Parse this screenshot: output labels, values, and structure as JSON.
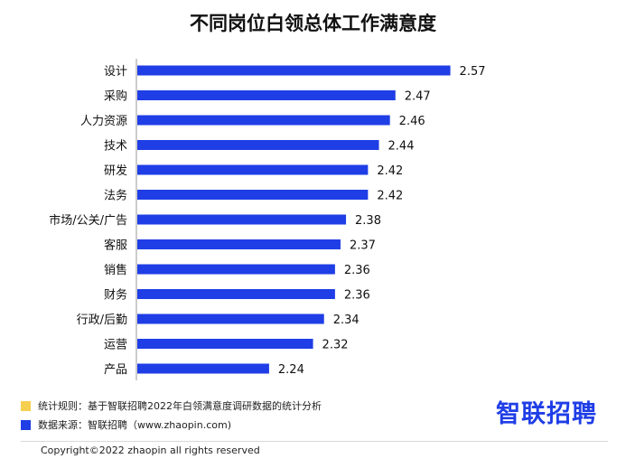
{
  "title": "不同岗位白领总体工作满意度",
  "chart_data": {
    "type": "bar",
    "orientation": "horizontal",
    "title": "不同岗位白领总体工作满意度",
    "categories": [
      "设计",
      "采购",
      "人力资源",
      "技术",
      "研发",
      "法务",
      "市场/公关/广告",
      "客服",
      "销售",
      "财务",
      "行政/后勤",
      "运营",
      "产品"
    ],
    "values": [
      2.57,
      2.47,
      2.46,
      2.44,
      2.42,
      2.42,
      2.38,
      2.37,
      2.36,
      2.36,
      2.34,
      2.32,
      2.24
    ],
    "value_labels": [
      "2.57",
      "2.47",
      "2.46",
      "2.44",
      "2.42",
      "2.42",
      "2.38",
      "2.37",
      "2.36",
      "2.36",
      "2.34",
      "2.32",
      "2.24"
    ],
    "xlabel": "",
    "ylabel": "",
    "grid": false,
    "bar_color": "#1f3ee6",
    "axis_color": "#9a9a9a"
  },
  "legend": [
    {
      "swatch_color": "#f5cf4f",
      "text": "统计规则：基于智联招聘2022年白领满意度调研数据的统计分析"
    },
    {
      "swatch_color": "#1f3ee6",
      "text": "数据来源：智联招聘（www.zhaopin.com)"
    }
  ],
  "logo": {
    "text": "智联招聘",
    "color": "#1f3ee6"
  },
  "copyright": "Copyright©2022 zhaopin all rights reserved"
}
